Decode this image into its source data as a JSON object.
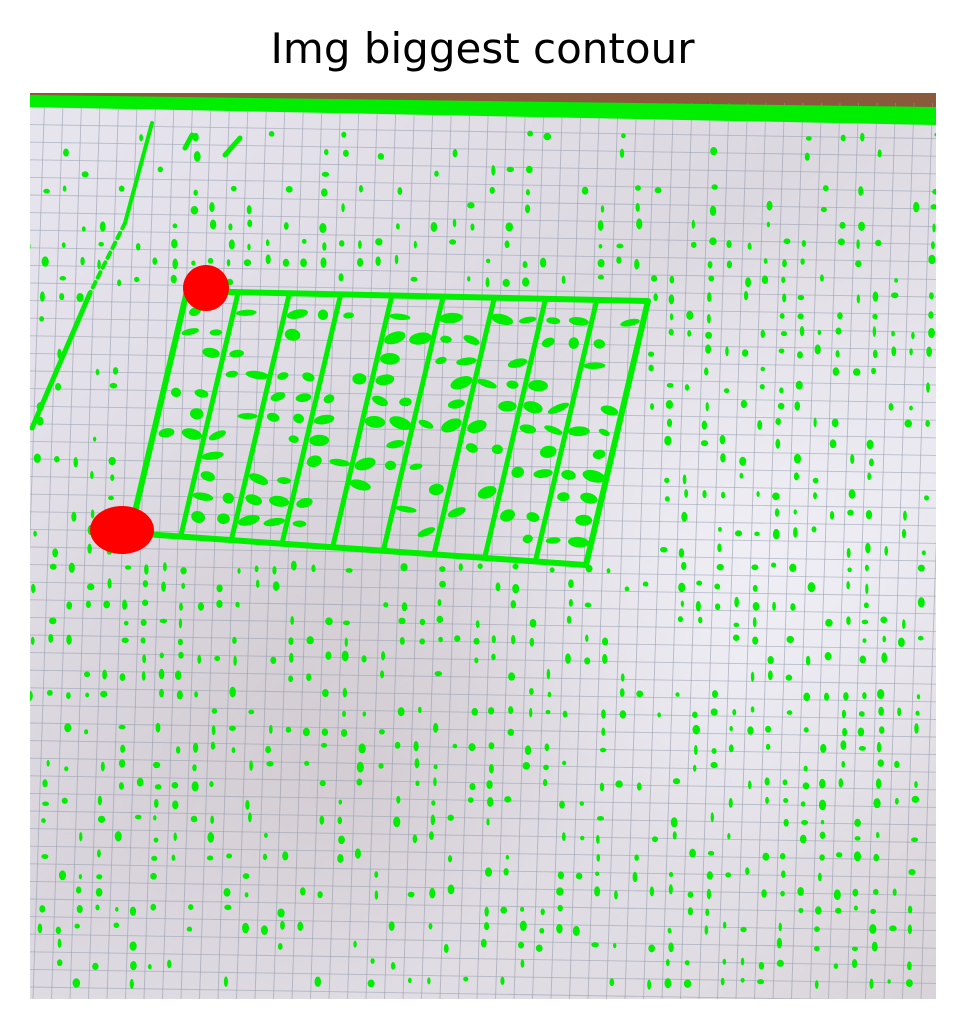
{
  "figure": {
    "title": "Img biggest contour"
  },
  "image": {
    "subject": "photo of graph paper with detected contour overlay",
    "contour_color": "#00ee00",
    "corner_marker_color": "#ff0000",
    "paper_color": "#e4e1ea",
    "table_color": "#8a5a3c",
    "grid_line_color": "#8a96a8"
  }
}
